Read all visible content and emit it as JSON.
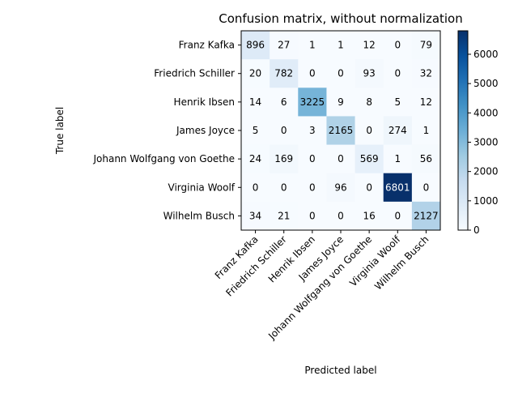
{
  "chart_data": {
    "type": "heatmap",
    "title": "Confusion matrix, without normalization",
    "xlabel": "Predicted label",
    "ylabel": "True label",
    "x_categories": [
      "Franz Kafka",
      "Friedrich Schiller",
      "Henrik Ibsen",
      "James Joyce",
      "Johann Wolfgang von Goethe",
      "Virginia Woolf",
      "Wilhelm Busch"
    ],
    "y_categories": [
      "Franz Kafka",
      "Friedrich Schiller",
      "Henrik Ibsen",
      "James Joyce",
      "Johann Wolfgang von Goethe",
      "Virginia Woolf",
      "Wilhelm Busch"
    ],
    "values": [
      [
        896,
        27,
        1,
        1,
        12,
        0,
        79
      ],
      [
        20,
        782,
        0,
        0,
        93,
        0,
        32
      ],
      [
        14,
        6,
        3225,
        9,
        8,
        5,
        12
      ],
      [
        5,
        0,
        3,
        2165,
        0,
        274,
        1
      ],
      [
        24,
        169,
        0,
        0,
        569,
        1,
        56
      ],
      [
        0,
        0,
        0,
        96,
        0,
        6801,
        0
      ],
      [
        34,
        21,
        0,
        0,
        16,
        0,
        2127
      ]
    ],
    "colormap": "Blues",
    "colorbar": {
      "range": [
        0,
        6801
      ],
      "ticks": [
        0,
        1000,
        2000,
        3000,
        4000,
        5000,
        6000
      ]
    },
    "grid": false
  }
}
